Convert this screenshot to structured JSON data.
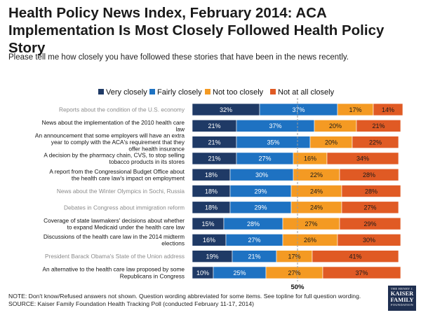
{
  "header": {
    "title": "Health Policy News Index, February 2014: ACA Implementation Is Most Closely Followed Health Policy Story",
    "subtitle": "Please tell me how closely you have followed these stories that have been in the news recently."
  },
  "chart_data": {
    "type": "bar",
    "orientation": "horizontal",
    "stacked": true,
    "title": "Health Policy News Index, February 2014: ACA Implementation Is Most Closely Followed Health Policy Story",
    "xlim": [
      0,
      100
    ],
    "reference_line": {
      "value": 50,
      "label": "50%"
    },
    "legend_position": "top",
    "categories": [
      "Reports about the condition of the U.S. economy",
      "News about the implementation of the 2010 health care law",
      "An announcement that some employers will have an extra year to comply with the ACA's requirement that they offer health insurance",
      "A decision by the pharmacy chain, CVS, to stop selling tobacco products in its stores",
      "A report from the Congressional Budget Office about the health care law's impact on employment",
      "News about the Winter Olympics in Sochi, Russia",
      "Debates in Congress about immigration reform",
      "Coverage of state lawmakers' decisions about whether to expand Medicaid under the health care law",
      "Discussions of the health care law in the 2014 midterm elections",
      "President Barack Obama's State of the Union address",
      "An alternative to the health care law proposed by some Republicans in Congress"
    ],
    "health_items": [
      false,
      true,
      true,
      true,
      true,
      false,
      false,
      true,
      true,
      false,
      true
    ],
    "series": [
      {
        "name": "Very closely",
        "color": "#1f3a66",
        "values": [
          32,
          21,
          21,
          21,
          18,
          18,
          18,
          15,
          16,
          19,
          10
        ]
      },
      {
        "name": "Fairly closely",
        "color": "#1e72c2",
        "values": [
          37,
          37,
          35,
          27,
          30,
          29,
          29,
          28,
          27,
          21,
          25
        ]
      },
      {
        "name": "Not too closely",
        "color": "#f49a23",
        "values": [
          17,
          20,
          20,
          16,
          22,
          24,
          24,
          27,
          26,
          17,
          27
        ]
      },
      {
        "name": "Not at all closely",
        "color": "#e05a24",
        "values": [
          14,
          21,
          22,
          34,
          28,
          28,
          27,
          29,
          30,
          41,
          37
        ]
      }
    ]
  },
  "footer": {
    "note": "NOTE: Don't know/Refused answers not shown. Question wording abbreviated for some items. See topline for full question wording.",
    "source": "SOURCE: Kaiser Family Foundation Health Tracking Poll (conducted February 11-17, 2014)"
  },
  "logo": {
    "line1": "THE HENRY J.",
    "line2a": "KAISER",
    "line2b": "FAMILY",
    "line3": "FOUNDATION"
  }
}
